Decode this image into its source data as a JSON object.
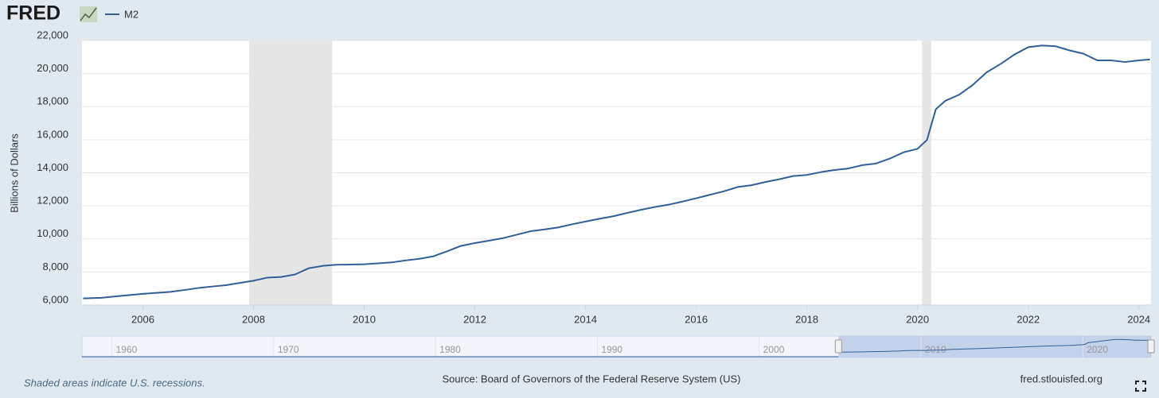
{
  "chart_data": {
    "type": "line",
    "logo": "FRED",
    "ylabel": "Billions of Dollars",
    "footnote": "Shaded areas indicate U.S. recessions.",
    "source": "Source: Board of Governors of the Federal Reserve System (US)",
    "site": "fred.stlouisfed.org",
    "xlim": [
      2004.9,
      2024.22
    ],
    "ylim": [
      6000,
      22000
    ],
    "xticks": [
      2006,
      2008,
      2010,
      2012,
      2014,
      2016,
      2018,
      2020,
      2022,
      2024
    ],
    "yticks": [
      {
        "value": 6000,
        "label": "6,000"
      },
      {
        "value": 8000,
        "label": "8,000"
      },
      {
        "value": 10000,
        "label": "10,000"
      },
      {
        "value": 12000,
        "label": "12,000"
      },
      {
        "value": 14000,
        "label": "14,000"
      },
      {
        "value": 16000,
        "label": "16,000"
      },
      {
        "value": 18000,
        "label": "18,000"
      },
      {
        "value": 20000,
        "label": "20,000"
      },
      {
        "value": 22000,
        "label": "22,000"
      }
    ],
    "grid": true,
    "recessions": [
      [
        2007.92,
        2009.42
      ],
      [
        2020.08,
        2020.25
      ]
    ],
    "recession_color": "#e6e6e6",
    "x": [
      2004.92,
      2005.25,
      2005.5,
      2005.75,
      2006.0,
      2006.25,
      2006.5,
      2006.75,
      2007.0,
      2007.25,
      2007.5,
      2007.75,
      2008.0,
      2008.25,
      2008.5,
      2008.75,
      2009.0,
      2009.25,
      2009.5,
      2009.75,
      2010.0,
      2010.25,
      2010.5,
      2010.75,
      2011.0,
      2011.25,
      2011.5,
      2011.75,
      2012.0,
      2012.25,
      2012.5,
      2012.75,
      2013.0,
      2013.25,
      2013.5,
      2013.75,
      2014.0,
      2014.25,
      2014.5,
      2014.75,
      2015.0,
      2015.25,
      2015.5,
      2015.75,
      2016.0,
      2016.25,
      2016.5,
      2016.75,
      2017.0,
      2017.25,
      2017.5,
      2017.75,
      2018.0,
      2018.25,
      2018.5,
      2018.75,
      2019.0,
      2019.25,
      2019.5,
      2019.75,
      2020.0,
      2020.17,
      2020.33,
      2020.5,
      2020.75,
      2021.0,
      2021.25,
      2021.5,
      2021.75,
      2022.0,
      2022.25,
      2022.5,
      2022.75,
      2023.0,
      2023.25,
      2023.5,
      2023.75,
      2024.0,
      2024.2
    ],
    "series": [
      {
        "name": "M2",
        "color": "#2f5f98",
        "values": [
          6400,
          6440,
          6520,
          6600,
          6680,
          6740,
          6800,
          6910,
          7030,
          7120,
          7200,
          7340,
          7470,
          7660,
          7700,
          7850,
          8230,
          8370,
          8440,
          8450,
          8470,
          8520,
          8580,
          8700,
          8800,
          8950,
          9250,
          9580,
          9750,
          9890,
          10040,
          10250,
          10460,
          10570,
          10690,
          10880,
          11050,
          11220,
          11370,
          11570,
          11760,
          11930,
          12070,
          12260,
          12460,
          12670,
          12880,
          13140,
          13250,
          13440,
          13610,
          13800,
          13870,
          14040,
          14170,
          14260,
          14460,
          14560,
          14860,
          15240,
          15450,
          15980,
          17840,
          18350,
          18720,
          19320,
          20080,
          20580,
          21150,
          21600,
          21700,
          21650,
          21400,
          21200,
          20800,
          20800,
          20700,
          20800,
          20850
        ]
      }
    ],
    "navigator": {
      "xlim": [
        1958.15,
        2024.22
      ],
      "ticks": [
        1960,
        1970,
        1980,
        1990,
        2000,
        2010,
        2020
      ]
    }
  }
}
